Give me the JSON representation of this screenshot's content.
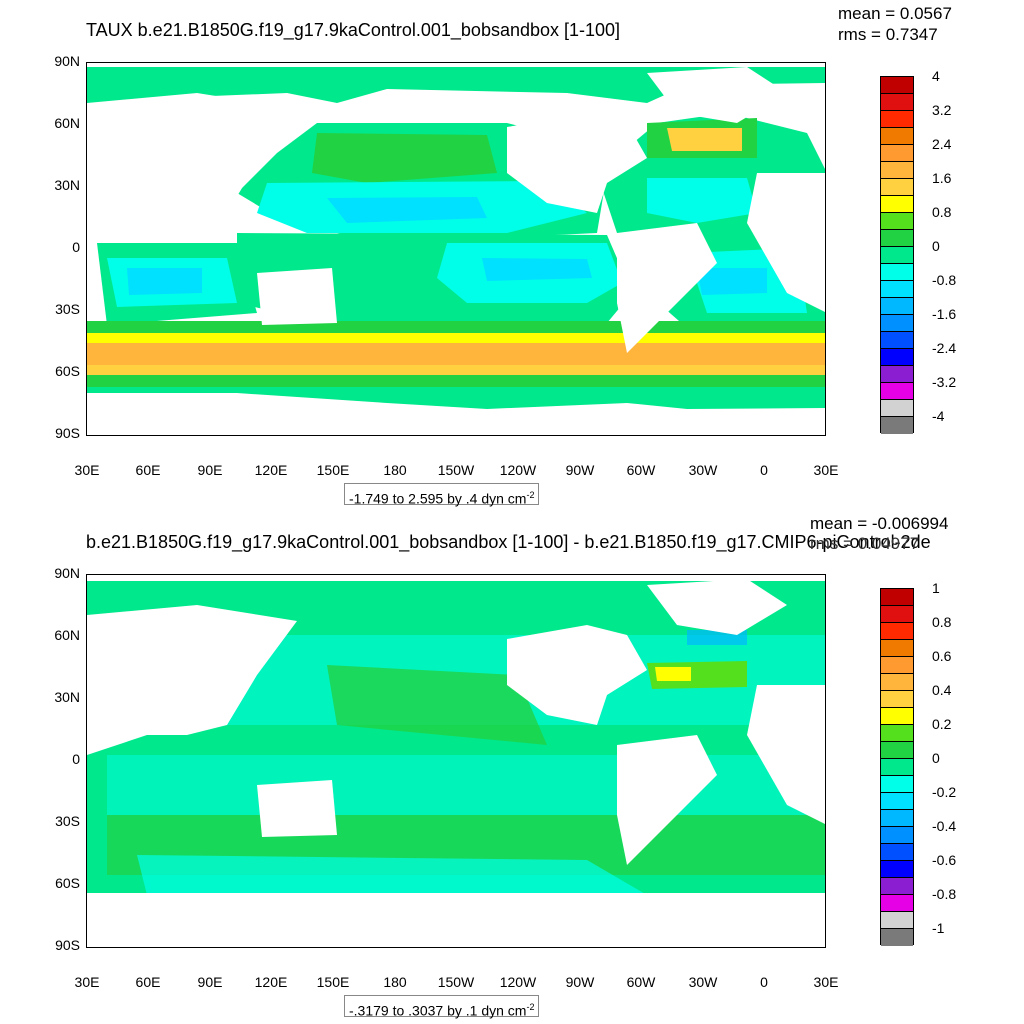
{
  "top": {
    "title": "TAUX b.e21.B1850G.f19_g17.9kaControl.001_bobsandbox [1-100]",
    "mean": "mean = 0.0567",
    "rms": "rms = 0.7347",
    "info": "-1.749 to 2.595 by .4 dyn cm",
    "info_sup": "-2",
    "colorbar_labels": [
      "4",
      "3.2",
      "2.4",
      "1.6",
      "0.8",
      "0",
      "-0.8",
      "-1.6",
      "-2.4",
      "-3.2",
      "-4"
    ],
    "colors": [
      "#c00000",
      "#e01010",
      "#ff2a00",
      "#f07a00",
      "#ff9a30",
      "#ffb43c",
      "#ffd040",
      "#ffff00",
      "#55e01e",
      "#21d243",
      "#00e88c",
      "#00ffe8",
      "#00e0ff",
      "#00b8ff",
      "#0090ff",
      "#0050ff",
      "#0000ff",
      "#8c1ed2",
      "#e600e6",
      "#d2d2d2",
      "#7a7a7a"
    ]
  },
  "bottom": {
    "title": "b.e21.B1850G.f19_g17.9kaControl.001_bobsandbox [1-100] - b.e21.B1850.f19_g17.CMIP6-piControl-2de",
    "mean": "mean = -0.006994",
    "rms": "rms = 0.04977",
    "info": "-.3179 to .3037 by .1 dyn cm",
    "info_sup": "-2",
    "colorbar_labels": [
      "1",
      "0.8",
      "0.6",
      "0.4",
      "0.2",
      "0",
      "-0.2",
      "-0.4",
      "-0.6",
      "-0.8",
      "-1"
    ],
    "colors": [
      "#c00000",
      "#e01010",
      "#ff2a00",
      "#f07a00",
      "#ff9a30",
      "#ffb43c",
      "#ffd040",
      "#ffff00",
      "#55e01e",
      "#21d243",
      "#00e88c",
      "#00ffe8",
      "#00e0ff",
      "#00b8ff",
      "#0090ff",
      "#0050ff",
      "#0000ff",
      "#8c1ed2",
      "#e600e6",
      "#d2d2d2",
      "#7a7a7a"
    ]
  },
  "lat_labels": [
    "90N",
    "60N",
    "30N",
    "0",
    "30S",
    "60S",
    "90S"
  ],
  "lon_labels": [
    "30E",
    "60E",
    "90E",
    "120E",
    "150E",
    "180",
    "150W",
    "120W",
    "90W",
    "60W",
    "30W",
    "0",
    "30E"
  ]
}
